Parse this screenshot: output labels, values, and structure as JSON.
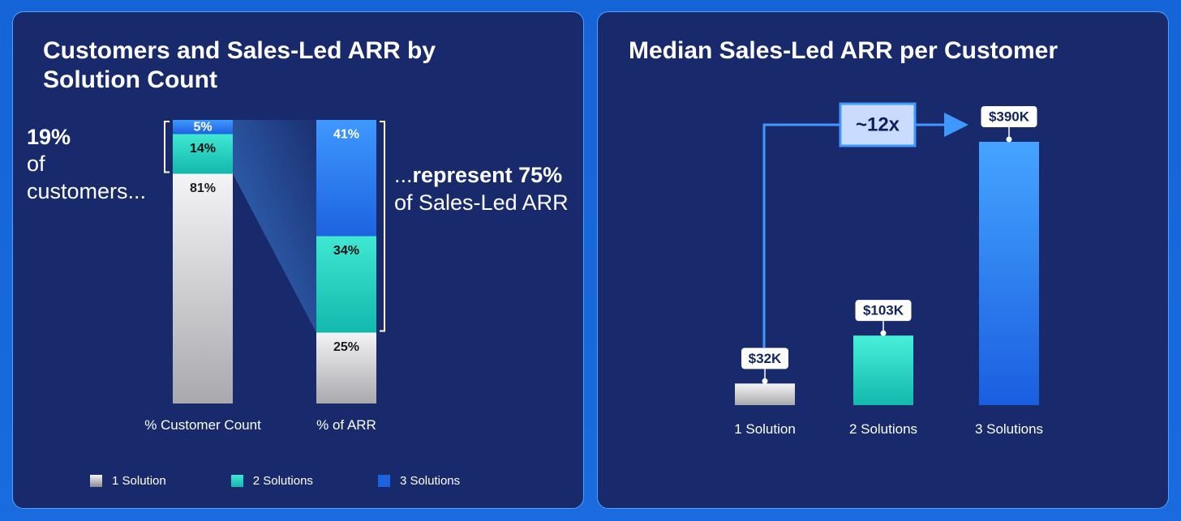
{
  "colors": {
    "one_solution": "#cfcfd2",
    "two_solutions": "#25d4c0",
    "three_solutions": "#2a7ff0",
    "panel_bg": "#182a6b",
    "accent": "#4fa3ff"
  },
  "left": {
    "title": "Customers and Sales-Led ARR by Solution Count",
    "callout_left": {
      "big": "19%",
      "line1": "of",
      "line2": "customers..."
    },
    "callout_right": {
      "prefix": "...",
      "big": "represent 75%",
      "line2": "of Sales-Led ARR"
    },
    "legend": [
      "1 Solution",
      "2 Solutions",
      "3 Solutions"
    ]
  },
  "right": {
    "title": "Median Sales-Led ARR per Customer",
    "multiplier_label": "~12x"
  },
  "chart_data": [
    {
      "type": "bar",
      "stacked": true,
      "title": "Customers and Sales-Led ARR by Solution Count",
      "categories": [
        "% Customer Count",
        "% of ARR"
      ],
      "series": [
        {
          "name": "1 Solution",
          "values": [
            81,
            25
          ],
          "labels": [
            "81%",
            "25%"
          ]
        },
        {
          "name": "2 Solutions",
          "values": [
            14,
            34
          ],
          "labels": [
            "14%",
            "34%"
          ]
        },
        {
          "name": "3 Solutions",
          "values": [
            5,
            41
          ],
          "labels": [
            "5%",
            "41%"
          ]
        }
      ],
      "ylim": [
        0,
        100
      ],
      "legend": "bottom",
      "grid": false
    },
    {
      "type": "bar",
      "title": "Median Sales-Led ARR per Customer",
      "categories": [
        "1 Solution",
        "2 Solutions",
        "3 Solutions"
      ],
      "values": [
        32,
        103,
        390
      ],
      "value_labels": [
        "$32K",
        "$103K",
        "$390K"
      ],
      "unit": "$K",
      "ylim": [
        0,
        400
      ],
      "annotation": "~12x",
      "grid": false
    }
  ]
}
